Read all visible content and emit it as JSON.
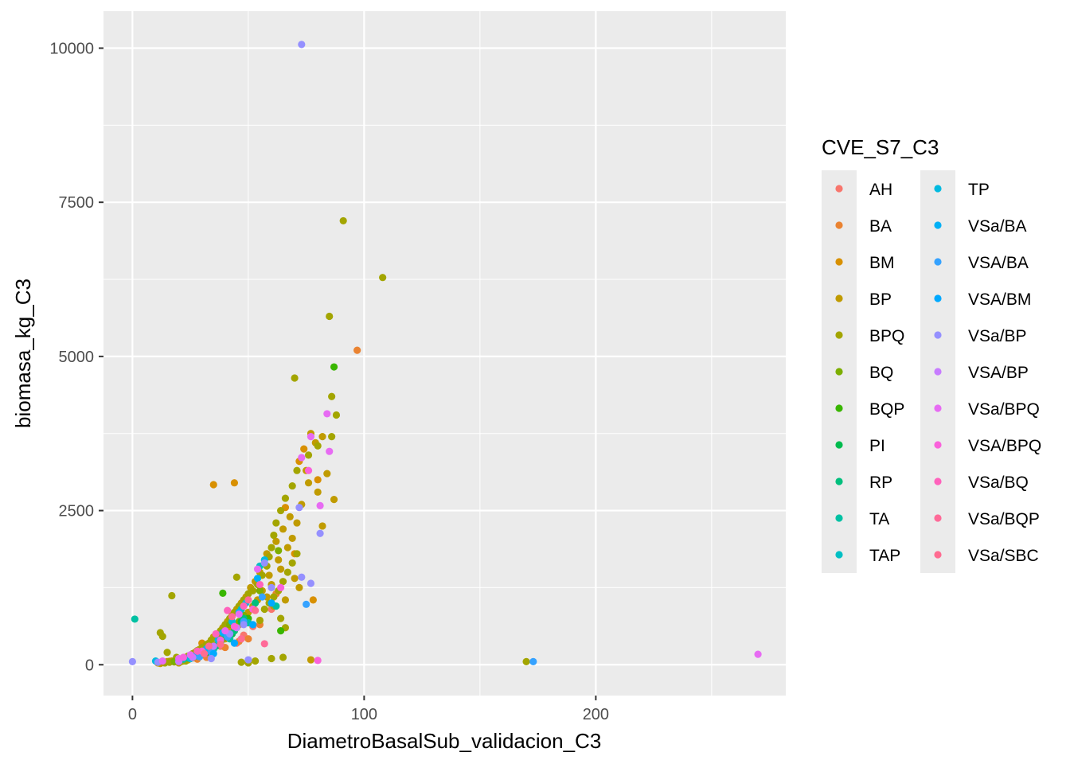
{
  "chart_data": {
    "type": "scatter",
    "xlabel": "DiametroBasalSub_validacion_C3",
    "ylabel": "biomasa_kg_C3",
    "xlim": [
      -12.5,
      282
    ],
    "ylim": [
      -500,
      10600
    ],
    "x_ticks": [
      0,
      100,
      200
    ],
    "x_tick_labels": [
      "0",
      "100",
      "200"
    ],
    "y_ticks": [
      0,
      2500,
      5000,
      7500,
      10000
    ],
    "y_tick_labels": [
      "0",
      "2500",
      "5000",
      "7500",
      "10000"
    ],
    "grid": true,
    "panel_background": "#ebebeb",
    "grid_color": "#ffffff",
    "legend": {
      "title": "CVE_S7_C3",
      "placement": "right",
      "columns": 2
    },
    "series": [
      {
        "name": "AH",
        "color": "#F8766D",
        "points": [
          [
            45,
            350
          ],
          [
            48,
            480
          ],
          [
            52,
            620
          ],
          [
            38,
            300
          ],
          [
            60,
            900
          ],
          [
            44,
            560
          ]
        ]
      },
      {
        "name": "BA",
        "color": "#EA8331",
        "points": [
          [
            97,
            5100
          ],
          [
            32,
            120
          ],
          [
            40,
            280
          ],
          [
            50,
            420
          ],
          [
            55,
            650
          ],
          [
            28,
            90
          ],
          [
            62,
            1150
          ],
          [
            46,
            380
          ]
        ]
      },
      {
        "name": "BM",
        "color": "#D89000",
        "points": [
          [
            35,
            2920
          ],
          [
            44,
            2950
          ],
          [
            66,
            2550
          ],
          [
            72,
            3300
          ],
          [
            74,
            3500
          ],
          [
            80,
            3000
          ],
          [
            78,
            1050
          ],
          [
            70,
            1800
          ],
          [
            30,
            350
          ],
          [
            42,
            600
          ],
          [
            20,
            60
          ]
        ]
      },
      {
        "name": "BP",
        "color": "#C09B00",
        "points": [
          [
            77,
            3750
          ],
          [
            79,
            3600
          ],
          [
            82,
            3700
          ],
          [
            87,
            2680
          ],
          [
            84,
            3100
          ],
          [
            76,
            2950
          ],
          [
            75,
            3150
          ],
          [
            68,
            2400
          ],
          [
            65,
            2200
          ],
          [
            62,
            2000
          ],
          [
            58,
            1800
          ],
          [
            57,
            1650
          ],
          [
            55,
            1500
          ],
          [
            53,
            1350
          ],
          [
            51,
            1250
          ],
          [
            49,
            1100
          ],
          [
            47,
            1000
          ],
          [
            45,
            900
          ],
          [
            43,
            800
          ],
          [
            41,
            700
          ],
          [
            39,
            600
          ],
          [
            37,
            500
          ],
          [
            35,
            450
          ],
          [
            33,
            350
          ],
          [
            31,
            300
          ],
          [
            29,
            250
          ],
          [
            27,
            200
          ],
          [
            25,
            150
          ],
          [
            23,
            120
          ],
          [
            21,
            90
          ],
          [
            19,
            70
          ],
          [
            17,
            60
          ],
          [
            15,
            50
          ],
          [
            13,
            40
          ],
          [
            11,
            30
          ],
          [
            60,
            1300
          ],
          [
            64,
            1550
          ],
          [
            67,
            1900
          ],
          [
            69,
            2050
          ],
          [
            71,
            2300
          ],
          [
            73,
            2600
          ],
          [
            63,
            1700
          ],
          [
            59,
            1450
          ],
          [
            56,
            1200
          ],
          [
            54,
            1050
          ],
          [
            52,
            950
          ],
          [
            50,
            850
          ],
          [
            48,
            750
          ],
          [
            46,
            650
          ],
          [
            44,
            550
          ],
          [
            42,
            480
          ],
          [
            40,
            420
          ],
          [
            38,
            380
          ],
          [
            36,
            320
          ],
          [
            34,
            260
          ],
          [
            32,
            210
          ],
          [
            30,
            170
          ],
          [
            28,
            140
          ],
          [
            26,
            110
          ],
          [
            24,
            80
          ],
          [
            22,
            60
          ],
          [
            12,
            20
          ],
          [
            14,
            35
          ],
          [
            16,
            55
          ],
          [
            18,
            45
          ],
          [
            20,
            30
          ],
          [
            70,
            1400
          ],
          [
            72,
            1250
          ],
          [
            66,
            1050
          ],
          [
            61,
            950
          ],
          [
            58,
            1100
          ],
          [
            77,
            80
          ],
          [
            82,
            2250
          ],
          [
            80,
            2800
          ]
        ]
      },
      {
        "name": "BPQ",
        "color": "#A3A500",
        "points": [
          [
            91,
            7200
          ],
          [
            108,
            6280
          ],
          [
            85,
            5650
          ],
          [
            70,
            4650
          ],
          [
            86,
            4350
          ],
          [
            88,
            4050
          ],
          [
            86,
            3700
          ],
          [
            80,
            3550
          ],
          [
            76,
            3400
          ],
          [
            71,
            3150
          ],
          [
            69,
            2900
          ],
          [
            66,
            2700
          ],
          [
            64,
            2500
          ],
          [
            62,
            2300
          ],
          [
            61,
            2100
          ],
          [
            60,
            1900
          ],
          [
            59,
            1750
          ],
          [
            58,
            1600
          ],
          [
            56,
            1450
          ],
          [
            54,
            1300
          ],
          [
            52,
            1200
          ],
          [
            50,
            1150
          ],
          [
            48,
            1050
          ],
          [
            46,
            950
          ],
          [
            45,
            1420
          ],
          [
            44,
            850
          ],
          [
            42,
            750
          ],
          [
            40,
            650
          ],
          [
            38,
            550
          ],
          [
            36,
            450
          ],
          [
            34,
            400
          ],
          [
            32,
            330
          ],
          [
            30,
            280
          ],
          [
            28,
            230
          ],
          [
            26,
            180
          ],
          [
            24,
            140
          ],
          [
            22,
            100
          ],
          [
            20,
            80
          ],
          [
            18,
            60
          ],
          [
            16,
            40
          ],
          [
            14,
            30
          ],
          [
            17,
            1120
          ],
          [
            12,
            520
          ],
          [
            13,
            460
          ],
          [
            15,
            200
          ],
          [
            19,
            120
          ],
          [
            21,
            50
          ],
          [
            23,
            60
          ],
          [
            47,
            40
          ],
          [
            50,
            30
          ],
          [
            53,
            60
          ],
          [
            55,
            720
          ],
          [
            57,
            900
          ],
          [
            59,
            1000
          ],
          [
            61,
            1100
          ],
          [
            63,
            1200
          ],
          [
            65,
            1350
          ],
          [
            67,
            1500
          ],
          [
            69,
            1650
          ],
          [
            71,
            1800
          ],
          [
            64,
            750
          ],
          [
            66,
            600
          ],
          [
            60,
            100
          ],
          [
            170,
            50
          ],
          [
            65,
            120
          ]
        ]
      },
      {
        "name": "BQ",
        "color": "#7CAE00",
        "points": [
          [
            63,
            1850
          ],
          [
            55,
            1200
          ],
          [
            48,
            800
          ],
          [
            42,
            650
          ],
          [
            38,
            420
          ],
          [
            35,
            300
          ],
          [
            30,
            200
          ],
          [
            25,
            120
          ],
          [
            20,
            80
          ],
          [
            18,
            50
          ],
          [
            60,
            1000
          ],
          [
            52,
            900
          ],
          [
            46,
            700
          ]
        ]
      },
      {
        "name": "BQP",
        "color": "#39B600",
        "points": [
          [
            87,
            4830
          ],
          [
            39,
            1160
          ],
          [
            64,
            550
          ],
          [
            50,
            750
          ],
          [
            45,
            600
          ],
          [
            40,
            450
          ],
          [
            33,
            250
          ],
          [
            28,
            160
          ],
          [
            22,
            100
          ]
        ]
      },
      {
        "name": "PI",
        "color": "#00BB4E",
        "points": [
          [
            47,
            700
          ],
          [
            43,
            500
          ],
          [
            38,
            350
          ],
          [
            32,
            200
          ],
          [
            26,
            120
          ]
        ]
      },
      {
        "name": "RP",
        "color": "#00BF7D",
        "points": [
          [
            53,
            1000
          ],
          [
            48,
            750
          ],
          [
            44,
            550
          ],
          [
            36,
            300
          ],
          [
            30,
            180
          ],
          [
            24,
            110
          ]
        ]
      },
      {
        "name": "TA",
        "color": "#00C1A3",
        "points": [
          [
            1,
            740
          ],
          [
            62,
            950
          ],
          [
            50,
            680
          ],
          [
            42,
            420
          ],
          [
            35,
            250
          ],
          [
            28,
            150
          ],
          [
            22,
            90
          ]
        ]
      },
      {
        "name": "TAP",
        "color": "#00BFC4",
        "points": [
          [
            55,
            1600
          ],
          [
            47,
            900
          ],
          [
            40,
            500
          ],
          [
            33,
            230
          ],
          [
            26,
            130
          ],
          [
            20,
            70
          ]
        ]
      },
      {
        "name": "TP",
        "color": "#00BAE0",
        "points": [
          [
            57,
            1700
          ],
          [
            49,
            1000
          ],
          [
            43,
            700
          ],
          [
            37,
            400
          ],
          [
            31,
            200
          ],
          [
            25,
            100
          ],
          [
            10,
            60
          ]
        ]
      },
      {
        "name": "VSa/BA",
        "color": "#00B0F6",
        "points": [
          [
            54,
            1400
          ],
          [
            46,
            850
          ],
          [
            39,
            520
          ],
          [
            32,
            260
          ],
          [
            27,
            140
          ]
        ]
      },
      {
        "name": "VSA/BA",
        "color": "#35A2FF",
        "points": [
          [
            173,
            50
          ],
          [
            75,
            980
          ],
          [
            56,
            1100
          ],
          [
            48,
            700
          ],
          [
            41,
            450
          ],
          [
            34,
            200
          ],
          [
            29,
            130
          ]
        ]
      },
      {
        "name": "VSA/BM",
        "color": "#00A9FF",
        "points": [
          [
            35,
            180
          ],
          [
            44,
            350
          ],
          [
            52,
            650
          ],
          [
            60,
            1000
          ]
        ]
      },
      {
        "name": "VSa/BP",
        "color": "#9590FF",
        "points": [
          [
            73,
            10060
          ],
          [
            0,
            50
          ],
          [
            72,
            2550
          ],
          [
            81,
            2130
          ],
          [
            73,
            1420
          ],
          [
            77,
            1320
          ],
          [
            57,
            1650
          ],
          [
            60,
            1250
          ],
          [
            50,
            80
          ],
          [
            11,
            40
          ],
          [
            34,
            100
          ],
          [
            42,
            500
          ],
          [
            48,
            650
          ]
        ]
      },
      {
        "name": "VSA/BP",
        "color": "#C77CFF",
        "points": [
          [
            20,
            50
          ],
          [
            26,
            120
          ],
          [
            35,
            300
          ],
          [
            45,
            600
          ]
        ]
      },
      {
        "name": "VSa/BPQ",
        "color": "#E76BF3",
        "points": [
          [
            270,
            170
          ],
          [
            84,
            4070
          ],
          [
            77,
            3700
          ],
          [
            85,
            3460
          ],
          [
            73,
            3360
          ],
          [
            81,
            2580
          ],
          [
            54,
            1550
          ],
          [
            46,
            820
          ],
          [
            40,
            550
          ],
          [
            25,
            160
          ],
          [
            20,
            100
          ],
          [
            13,
            60
          ]
        ]
      },
      {
        "name": "VSA/BPQ",
        "color": "#FA62DB",
        "points": [
          [
            80,
            70
          ],
          [
            76,
            3150
          ],
          [
            64,
            1250
          ],
          [
            52,
            900
          ],
          [
            44,
            620
          ],
          [
            38,
            400
          ],
          [
            30,
            220
          ],
          [
            22,
            120
          ]
        ]
      },
      {
        "name": "VSa/BQ",
        "color": "#FF62BC",
        "points": [
          [
            41,
            880
          ],
          [
            48,
            950
          ],
          [
            55,
            1300
          ],
          [
            36,
            500
          ],
          [
            28,
            220
          ]
        ]
      },
      {
        "name": "VSa/BQP",
        "color": "#FF6A98",
        "points": [
          [
            57,
            340
          ],
          [
            43,
            780
          ],
          [
            50,
            1050
          ],
          [
            33,
            300
          ]
        ]
      },
      {
        "name": "VSa/SBC",
        "color": "#FF6C91",
        "points": [
          [
            47,
            420
          ],
          [
            53,
            880
          ],
          [
            38,
            330
          ],
          [
            31,
            180
          ]
        ]
      }
    ]
  }
}
